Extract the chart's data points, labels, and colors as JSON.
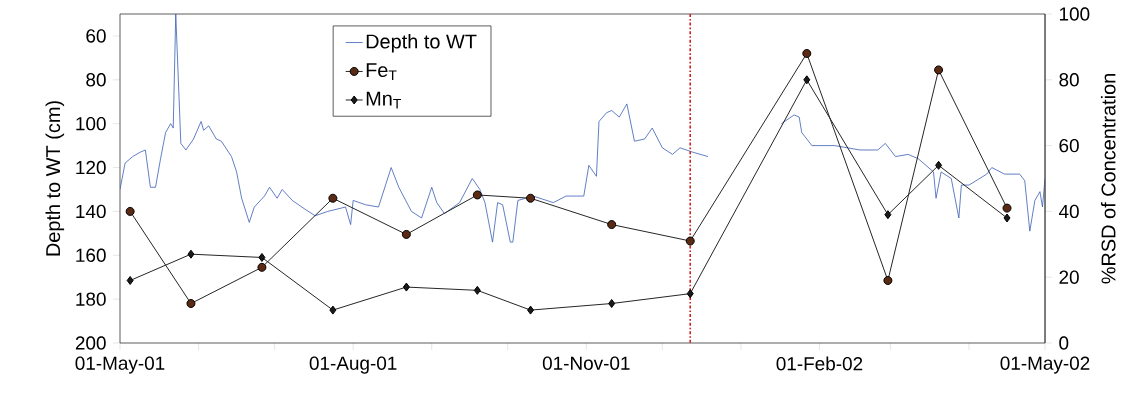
{
  "chart_data": {
    "type": "line",
    "ylabel": "Depth to WT (cm)",
    "y2label": "%RSD of Concentration",
    "xlim": [
      "2001-05-01",
      "2002-05-01"
    ],
    "xticks": [
      {
        "value": "2001-05-01",
        "label": "01-May-01"
      },
      {
        "value": "2001-06-01",
        "label": null
      },
      {
        "value": "2001-07-01",
        "label": null
      },
      {
        "value": "2001-08-01",
        "label": "01-Aug-01"
      },
      {
        "value": "2001-09-01",
        "label": null
      },
      {
        "value": "2001-10-01",
        "label": null
      },
      {
        "value": "2001-11-01",
        "label": "01-Nov-01"
      },
      {
        "value": "2001-12-01",
        "label": null
      },
      {
        "value": "2002-01-01",
        "label": null
      },
      {
        "value": "2002-02-01",
        "label": "01-Feb-02"
      },
      {
        "value": "2002-03-01",
        "label": null
      },
      {
        "value": "2002-04-01",
        "label": null
      },
      {
        "value": "2002-05-01",
        "label": "01-May-02"
      }
    ],
    "ylim": [
      200,
      50
    ],
    "yticks": [
      60,
      80,
      100,
      120,
      140,
      160,
      180,
      200
    ],
    "y2lim": [
      0,
      100
    ],
    "y2ticks": [
      0,
      20,
      40,
      60,
      80,
      100
    ],
    "legend": "top left",
    "ref_lines": [
      {
        "axis": "x",
        "value": "2001-12-12",
        "color": "#cc2222",
        "line_style": "dashdot"
      }
    ],
    "series": [
      {
        "name": "Depth to WT",
        "color": "#3b5eb5",
        "marker": "none",
        "x": [
          "2001-05-01",
          "2001-05-03",
          "2001-05-06",
          "2001-05-09",
          "2001-05-11",
          "2001-05-13",
          "2001-05-15",
          "2001-05-17",
          "2001-05-19",
          "2001-05-21",
          "2001-05-22",
          "2001-05-23",
          "2001-05-25",
          "2001-05-27",
          "2001-05-30",
          "2001-06-02",
          "2001-06-03",
          "2001-06-05",
          "2001-06-08",
          "2001-06-10",
          "2001-06-14",
          "2001-06-16",
          "2001-06-18",
          "2001-06-21",
          "2001-06-23",
          "2001-06-27",
          "2001-06-29",
          "2001-07-02",
          "2001-07-04",
          "2001-07-08",
          "2001-07-13",
          "2001-07-17",
          "2001-07-22",
          "2001-07-29",
          "2001-07-31",
          "2001-08-01",
          "2001-08-06",
          "2001-08-11",
          "2001-08-16",
          "2001-08-19",
          "2001-08-24",
          "2001-08-28",
          "2001-09-01",
          "2001-09-03",
          "2001-09-06",
          "2001-09-12",
          "2001-09-17",
          "2001-09-20",
          "2001-09-22",
          "2001-09-25",
          "2001-09-27",
          "2001-09-29",
          "2001-10-02",
          "2001-10-03",
          "2001-10-05",
          "2001-10-11",
          "2001-10-19",
          "2001-10-24",
          "2001-10-31",
          "2001-11-02",
          "2001-11-05",
          "2001-11-06",
          "2001-11-09",
          "2001-11-11",
          "2001-11-14",
          "2001-11-17",
          "2001-11-20",
          "2001-11-24",
          "2001-11-27",
          "2001-12-01",
          "2001-12-05",
          "2001-12-08",
          "2001-12-13",
          "2001-12-19",
          "2002-01-01",
          "2002-01-17",
          "2002-01-22",
          "2002-01-24",
          "2002-01-25",
          "2002-01-29",
          "2002-02-07",
          "2002-02-17",
          "2002-02-24",
          "2002-02-27",
          "2002-03-03",
          "2002-03-08",
          "2002-03-12",
          "2002-03-18",
          "2002-03-19",
          "2002-03-21",
          "2002-03-25",
          "2002-03-28",
          "2002-03-29",
          "2002-04-01",
          "2002-04-08",
          "2002-04-10",
          "2002-04-15",
          "2002-04-21",
          "2002-04-23",
          "2002-04-25",
          "2002-04-27",
          "2002-04-29",
          "2002-04-30",
          "2002-05-01"
        ],
        "values": [
          130,
          118,
          115,
          113,
          112,
          129,
          129,
          116,
          104,
          100,
          102,
          50,
          109,
          112,
          107,
          99,
          103,
          101,
          107,
          108,
          115,
          122,
          134,
          145,
          138,
          133,
          129,
          134,
          130,
          135,
          139,
          142,
          140,
          138,
          146,
          135,
          137,
          138,
          120,
          129,
          140,
          143,
          129,
          136,
          141,
          136,
          125,
          130,
          136,
          154,
          136,
          137,
          154,
          154,
          135,
          133,
          136,
          133,
          133,
          119,
          124,
          99,
          95,
          94,
          97,
          91,
          108,
          107,
          102,
          111,
          114,
          111,
          113,
          115,
          null,
          100,
          96,
          97,
          104,
          110,
          110,
          112,
          112,
          109,
          115,
          114,
          116,
          122,
          134,
          122,
          125,
          143,
          128,
          128,
          123,
          120,
          123,
          123,
          126,
          149,
          135,
          131,
          138,
          125
        ]
      },
      {
        "name": "Fe$_{T}$",
        "axis": "y2",
        "color": "#5a2a14",
        "marker": "circle",
        "x": [
          "2001-05-05",
          "2001-05-29",
          "2001-06-26",
          "2001-07-24",
          "2001-08-22",
          "2001-09-19",
          "2001-10-10",
          "2001-11-11",
          "2001-12-12",
          "2002-01-27",
          "2002-02-28",
          "2002-03-20",
          "2002-04-16"
        ],
        "values": [
          40,
          12,
          23,
          44,
          33,
          45,
          44,
          36,
          31,
          88,
          19,
          83,
          41
        ]
      },
      {
        "name": "Mn$_{T}$",
        "axis": "y2",
        "color": "#1a1a1a",
        "marker": "diamond",
        "x": [
          "2001-05-05",
          "2001-05-29",
          "2001-06-26",
          "2001-07-24",
          "2001-08-22",
          "2001-09-19",
          "2001-10-10",
          "2001-11-11",
          "2001-12-12",
          "2002-01-27",
          "2002-02-28",
          "2002-03-20",
          "2002-04-16"
        ],
        "values": [
          19,
          27,
          26,
          10,
          17,
          16,
          10,
          12,
          15,
          80,
          39,
          54,
          38
        ]
      }
    ]
  }
}
